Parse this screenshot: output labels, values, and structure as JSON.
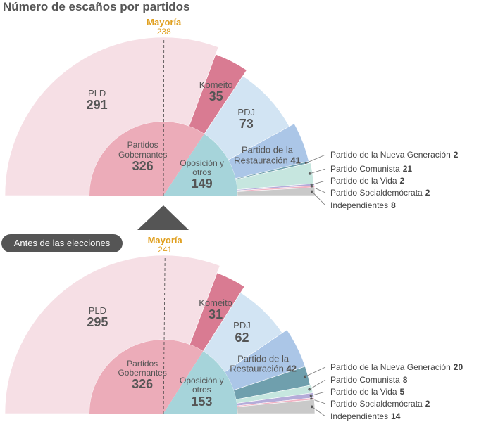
{
  "chart_data": [
    {
      "type": "parliament",
      "title": "Número de escaños por partidos",
      "majority_label": "Mayoría",
      "majority": 238,
      "categories": [
        "PLD",
        "Kōmeitō",
        "PDJ",
        "Partido de la Restauración",
        "Partido de la Nueva Generación",
        "Partido Comunista",
        "Partido de la Vida",
        "Partido Socialdemócrata",
        "Independientes"
      ],
      "values": [
        291,
        35,
        73,
        41,
        2,
        21,
        2,
        2,
        8
      ],
      "colors": [
        "#f6dfe5",
        "#d97b92",
        "#d2e4f3",
        "#abc6e7",
        "#6f9fad",
        "#c6e6df",
        "#b5acd9",
        "#f0b3c4",
        "#c9c9c9"
      ],
      "inner": {
        "categories": [
          "Partidos Gobernantes",
          "Oposición y otros"
        ],
        "values": [
          326,
          149
        ],
        "colors": [
          "#ecacb9",
          "#a6d4da"
        ]
      }
    },
    {
      "type": "parliament",
      "subtitle": "Antes de las elecciones",
      "majority_label": "Mayoría",
      "majority": 241,
      "categories": [
        "PLD",
        "Kōmeitō",
        "PDJ",
        "Partido de la Restauración",
        "Partido de la Nueva Generación",
        "Partido Comunista",
        "Partido de la Vida",
        "Partido Socialdemócrata",
        "Independientes"
      ],
      "values": [
        295,
        31,
        62,
        42,
        20,
        8,
        5,
        2,
        14
      ],
      "colors": [
        "#f6dfe5",
        "#d97b92",
        "#d2e4f3",
        "#abc6e7",
        "#6f9fad",
        "#c6e6df",
        "#b5acd9",
        "#f0b3c4",
        "#c9c9c9"
      ],
      "inner": {
        "categories": [
          "Partidos Gobernantes",
          "Oposición y otros"
        ],
        "values": [
          326,
          153
        ],
        "colors": [
          "#ecacb9",
          "#a6d4da"
        ]
      }
    }
  ]
}
